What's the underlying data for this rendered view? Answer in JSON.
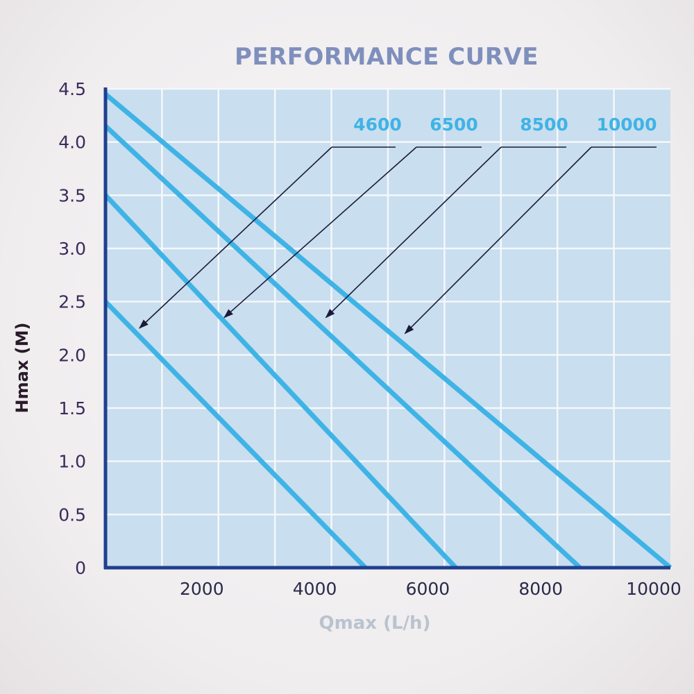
{
  "chart_data": {
    "type": "line",
    "title": "PERFORMANCE CURVE",
    "xlabel": "Qmax (L/h)",
    "ylabel": "Hmax (M)",
    "xlim": [
      0,
      10000
    ],
    "ylim": [
      0,
      4.5
    ],
    "x_ticks": [
      2000,
      4000,
      6000,
      8000,
      10000
    ],
    "x_tick_labels": [
      "2000",
      "4000",
      "6000",
      "8000",
      "10000"
    ],
    "y_ticks": [
      0,
      0.5,
      1.0,
      1.5,
      2.0,
      2.5,
      3.0,
      3.5,
      4.0,
      4.5
    ],
    "y_tick_labels": [
      "0",
      "0.5",
      "1.0",
      "1.5",
      "2.0",
      "2.5",
      "3.0",
      "3.5",
      "4.0",
      "4.5"
    ],
    "grid": true,
    "series": [
      {
        "name": "4600",
        "x": [
          0,
          4600
        ],
        "y": [
          2.5,
          0
        ]
      },
      {
        "name": "6500",
        "x": [
          0,
          6200
        ],
        "y": [
          3.5,
          0
        ]
      },
      {
        "name": "8500",
        "x": [
          0,
          8400
        ],
        "y": [
          4.15,
          0
        ]
      },
      {
        "name": "10000",
        "x": [
          0,
          10000
        ],
        "y": [
          4.45,
          0
        ]
      }
    ],
    "annotations": [
      {
        "series": "4600",
        "target": [
          600,
          2.25
        ]
      },
      {
        "series": "6500",
        "target": [
          2100,
          2.35
        ]
      },
      {
        "series": "8500",
        "target": [
          3900,
          2.35
        ]
      },
      {
        "series": "10000",
        "target": [
          5300,
          2.2
        ]
      }
    ],
    "colors": {
      "line": "#3fb3e6",
      "plot_bg": "#c9deee",
      "axis": "#1f3f8f",
      "grid": "#f4f8fc",
      "arrow": "#1a1a3a"
    }
  }
}
